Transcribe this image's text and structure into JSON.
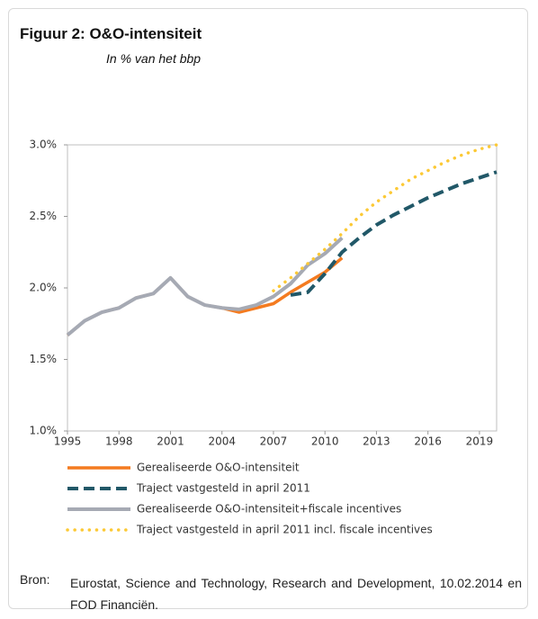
{
  "chart_data": {
    "type": "line",
    "title": "Figuur 2:  O&O-intensiteit",
    "subtitle": "In % van het bbp",
    "source_label": "Bron:",
    "source": "Eurostat, Science and Technology, Research and Development, 10.02.2014 en FOD Financiën.",
    "x": [
      1995,
      1996,
      1997,
      1998,
      1999,
      2000,
      2001,
      2002,
      2003,
      2004,
      2005,
      2006,
      2007,
      2008,
      2009,
      2010,
      2011,
      2012,
      2013,
      2014,
      2015,
      2016,
      2017,
      2018,
      2019,
      2020
    ],
    "xlim": [
      1995,
      2020
    ],
    "xticks": [
      1995,
      1998,
      2001,
      2004,
      2007,
      2010,
      2013,
      2016,
      2019
    ],
    "ylim": [
      1.0,
      3.0
    ],
    "yticks": [
      {
        "value": 1.0,
        "label": "1.0%"
      },
      {
        "value": 1.5,
        "label": "1.5%"
      },
      {
        "value": 2.0,
        "label": "2.0%"
      },
      {
        "value": 2.5,
        "label": "2.5%"
      },
      {
        "value": 3.0,
        "label": "3.0%"
      }
    ],
    "series": [
      {
        "name": "Gerealiseerde O&O-intensiteit",
        "color": "#f47b20",
        "dash": "solid",
        "values": [
          1.67,
          1.77,
          1.83,
          1.86,
          1.93,
          1.96,
          2.07,
          1.94,
          1.88,
          1.86,
          1.83,
          1.86,
          1.89,
          1.97,
          2.04,
          2.11,
          2.21,
          null,
          null,
          null,
          null,
          null,
          null,
          null,
          null,
          null
        ]
      },
      {
        "name": "Traject vastgesteld in april 2011",
        "color": "#215868",
        "dash": "dashed",
        "values": [
          null,
          null,
          null,
          null,
          null,
          null,
          null,
          null,
          null,
          null,
          null,
          null,
          null,
          1.95,
          1.97,
          2.1,
          2.25,
          2.35,
          2.44,
          2.51,
          2.57,
          2.63,
          2.68,
          2.73,
          2.77,
          2.81
        ]
      },
      {
        "name": "Gerealiseerde O&O-intensiteit+fiscale incentives",
        "color": "#a6aab4",
        "dash": "solid",
        "values": [
          1.67,
          1.77,
          1.83,
          1.86,
          1.93,
          1.96,
          2.07,
          1.94,
          1.88,
          1.86,
          1.85,
          1.88,
          1.94,
          2.03,
          2.16,
          2.24,
          2.35,
          null,
          null,
          null,
          null,
          null,
          null,
          null,
          null,
          null
        ]
      },
      {
        "name": "Traject vastgesteld in april 2011 incl. fiscale incentives",
        "color": "#fcc935",
        "dash": "dotted",
        "values": [
          null,
          null,
          null,
          null,
          null,
          null,
          null,
          null,
          null,
          null,
          null,
          null,
          1.98,
          2.07,
          2.17,
          2.27,
          2.38,
          2.5,
          2.6,
          2.68,
          2.76,
          2.82,
          2.88,
          2.93,
          2.97,
          3.0
        ]
      }
    ],
    "draw_order": [
      0,
      2,
      1,
      3
    ]
  }
}
